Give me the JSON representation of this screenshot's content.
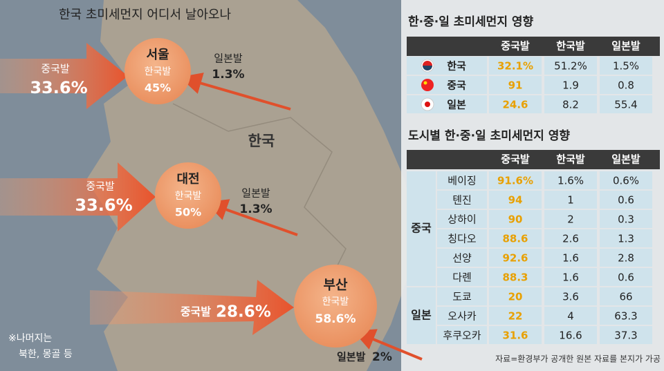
{
  "map": {
    "title": "한국 초미세먼지 어디서 날아오나",
    "country_label": "한국",
    "cities": [
      {
        "name": "서울",
        "china_label": "중국발",
        "china_value": "33.6%",
        "korea_label": "한국발",
        "korea_value": "45%",
        "japan_label": "일본발",
        "japan_value": "1.3%"
      },
      {
        "name": "대전",
        "china_label": "중국발",
        "china_value": "33.6%",
        "korea_label": "한국발",
        "korea_value": "50%",
        "japan_label": "일본발",
        "japan_value": "1.3%"
      },
      {
        "name": "부산",
        "china_label": "중국발",
        "china_value": "28.6%",
        "korea_label": "한국발",
        "korea_value": "58.6%",
        "japan_label": "일본발",
        "japan_value": "2%"
      }
    ],
    "note_lines": [
      "※나머지는",
      "북한, 몽골 등"
    ]
  },
  "table1": {
    "title": "한·중·일 초미세먼지 영향",
    "columns": [
      "중국발",
      "한국발",
      "일본발"
    ],
    "rows": [
      {
        "country": "한국",
        "values": [
          "32.1%",
          "51.2%",
          "1.5%"
        ]
      },
      {
        "country": "중국",
        "values": [
          "91",
          "1.9",
          "0.8"
        ]
      },
      {
        "country": "일본",
        "values": [
          "24.6",
          "8.2",
          "55.4"
        ]
      }
    ]
  },
  "table2": {
    "title": "도시별 한·중·일 초미세먼지 영향",
    "columns": [
      "중국발",
      "한국발",
      "일본발"
    ],
    "groups": [
      {
        "name": "중국",
        "rows": [
          {
            "city": "베이징",
            "values": [
              "91.6%",
              "1.6%",
              "0.6%"
            ]
          },
          {
            "city": "톈진",
            "values": [
              "94",
              "1",
              "0.6"
            ]
          },
          {
            "city": "상하이",
            "values": [
              "90",
              "2",
              "0.3"
            ]
          },
          {
            "city": "칭다오",
            "values": [
              "88.6",
              "2.6",
              "1.3"
            ]
          },
          {
            "city": "선양",
            "values": [
              "92.6",
              "1.6",
              "2.8"
            ]
          },
          {
            "city": "다롄",
            "values": [
              "88.3",
              "1.6",
              "0.6"
            ]
          }
        ]
      },
      {
        "name": "일본",
        "rows": [
          {
            "city": "도쿄",
            "values": [
              "20",
              "3.6",
              "66"
            ]
          },
          {
            "city": "오사카",
            "values": [
              "22",
              "4",
              "63.3"
            ]
          },
          {
            "city": "후쿠오카",
            "values": [
              "31.6",
              "16.6",
              "37.3"
            ]
          }
        ]
      }
    ]
  },
  "source": "자료=환경부가 공개한 원본 자료를 본지가 가공"
}
